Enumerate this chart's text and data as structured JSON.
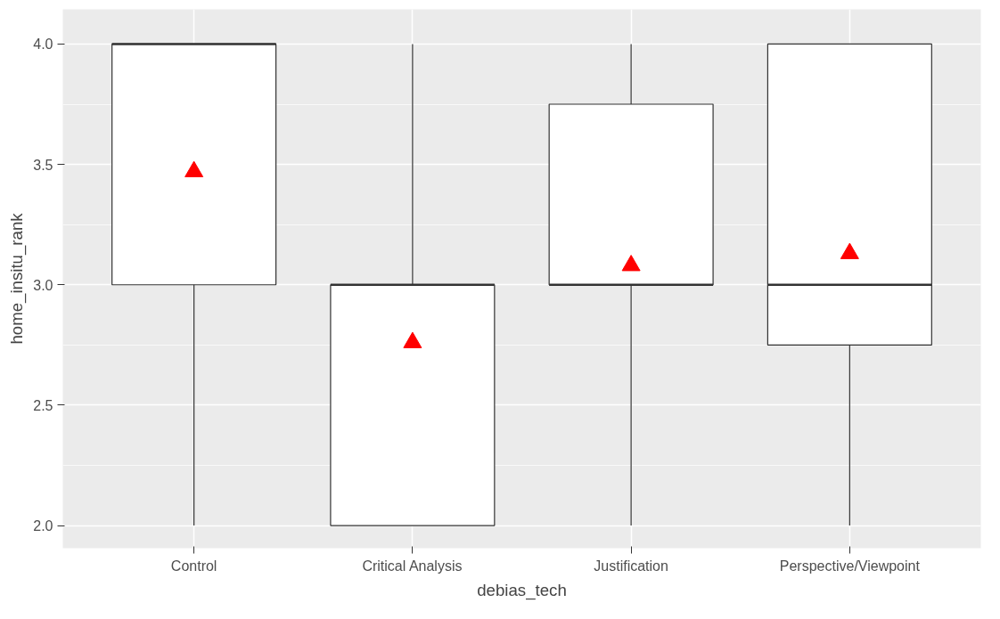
{
  "chart_data": {
    "type": "box",
    "xlabel": "debias_tech",
    "ylabel": "home_insitu_rank",
    "categories": [
      "Control",
      "Critical Analysis",
      "Justification",
      "Perspective/Viewpoint"
    ],
    "ylim": [
      1.906,
      4.144
    ],
    "yticks": [
      {
        "value": 2.0,
        "label": "2.0"
      },
      {
        "value": 2.5,
        "label": "2.5"
      },
      {
        "value": 3.0,
        "label": "3.0"
      },
      {
        "value": 3.5,
        "label": "3.5"
      },
      {
        "value": 4.0,
        "label": "4.0"
      }
    ],
    "grid": true,
    "series": [
      {
        "color": "#333333",
        "boxes": [
          {
            "low": 2,
            "q1": 3,
            "median": 4,
            "q3": 4,
            "high": 4
          },
          {
            "low": 2,
            "q1": 2,
            "median": 3,
            "q3": 3,
            "high": 4
          },
          {
            "low": 2,
            "q1": 3,
            "median": 3,
            "q3": 3.75,
            "high": 4
          },
          {
            "low": 2,
            "q1": 2.75,
            "median": 3,
            "q3": 4,
            "high": 4
          }
        ]
      },
      {
        "type": "scatter",
        "marker": "triangle",
        "color": "#ff0000",
        "x": [
          "Control",
          "Critical Analysis",
          "Justification",
          "Perspective/Viewpoint"
        ],
        "values": [
          3.47,
          2.76,
          3.08,
          3.13
        ]
      }
    ]
  }
}
